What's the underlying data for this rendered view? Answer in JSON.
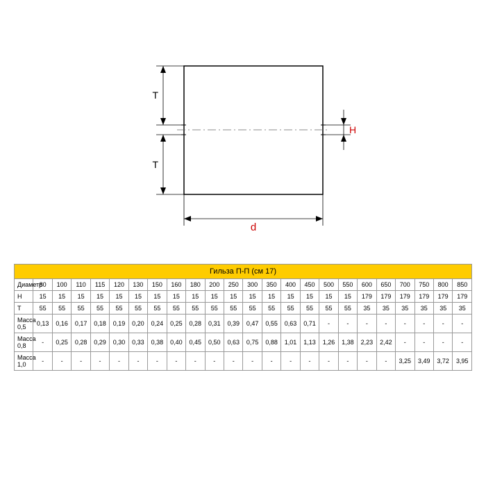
{
  "drawing": {
    "labels": {
      "d": "d",
      "T": "T",
      "H": "H"
    },
    "stroke": "#000000",
    "construction": "#666666"
  },
  "table": {
    "title": "Гильза П-П (см 17)",
    "title_bg": "#ffcc00",
    "columns": [
      "80",
      "100",
      "110",
      "115",
      "120",
      "130",
      "150",
      "160",
      "180",
      "200",
      "250",
      "300",
      "350",
      "400",
      "450",
      "500",
      "550",
      "600",
      "650",
      "700",
      "750",
      "800",
      "850"
    ],
    "rows": [
      {
        "label": "Диаметр",
        "cells": [
          "80",
          "100",
          "110",
          "115",
          "120",
          "130",
          "150",
          "160",
          "180",
          "200",
          "250",
          "300",
          "350",
          "400",
          "450",
          "500",
          "550",
          "600",
          "650",
          "700",
          "750",
          "800",
          "850"
        ]
      },
      {
        "label": "H",
        "cells": [
          "15",
          "15",
          "15",
          "15",
          "15",
          "15",
          "15",
          "15",
          "15",
          "15",
          "15",
          "15",
          "15",
          "15",
          "15",
          "15",
          "15",
          "179",
          "179",
          "179",
          "179",
          "179",
          "179"
        ]
      },
      {
        "label": "T",
        "cells": [
          "55",
          "55",
          "55",
          "55",
          "55",
          "55",
          "55",
          "55",
          "55",
          "55",
          "55",
          "55",
          "55",
          "55",
          "55",
          "55",
          "55",
          "35",
          "35",
          "35",
          "35",
          "35",
          "35"
        ]
      },
      {
        "label": "Масса 0,5",
        "cells": [
          "0,13",
          "0,16",
          "0,17",
          "0,18",
          "0,19",
          "0,20",
          "0,24",
          "0,25",
          "0,28",
          "0,31",
          "0,39",
          "0,47",
          "0,55",
          "0,63",
          "0,71",
          "-",
          "-",
          "-",
          "-",
          "-",
          "-",
          "-",
          "-"
        ]
      },
      {
        "label": "Масса 0,8",
        "cells": [
          "-",
          "0,25",
          "0,28",
          "0,29",
          "0,30",
          "0,33",
          "0,38",
          "0,40",
          "0,45",
          "0,50",
          "0,63",
          "0,75",
          "0,88",
          "1,01",
          "1,13",
          "1,26",
          "1,38",
          "2,23",
          "2,42",
          "-",
          "-",
          "-",
          "-"
        ]
      },
      {
        "label": "Масса 1,0",
        "cells": [
          "-",
          "-",
          "-",
          "-",
          "-",
          "-",
          "-",
          "-",
          "-",
          "-",
          "-",
          "-",
          "-",
          "-",
          "-",
          "-",
          "-",
          "-",
          "-",
          "3,25",
          "3,49",
          "3,72",
          "3,95"
        ]
      }
    ]
  }
}
